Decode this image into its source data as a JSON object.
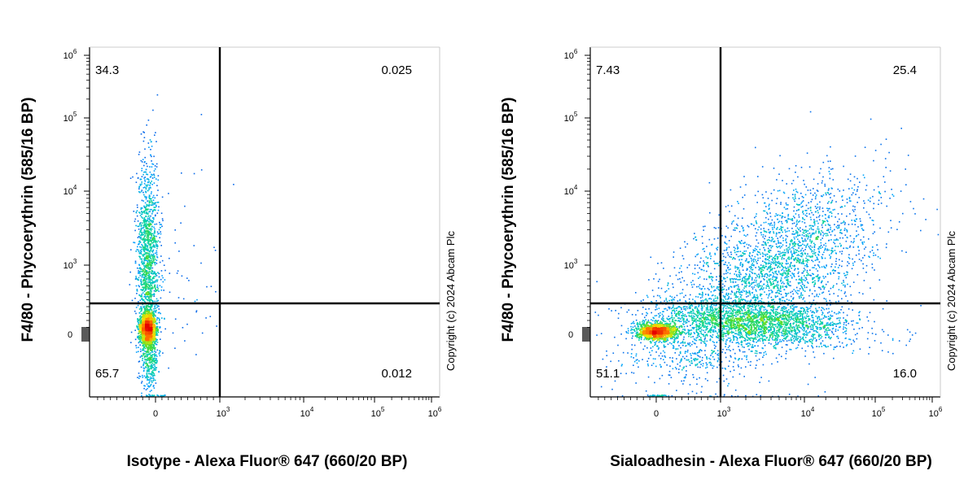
{
  "chart_data": [
    {
      "type": "scatter",
      "subtype": "flow-cytometry-density",
      "xlabel": "Isotype - Alexa Fluor® 647 (660/20 BP)",
      "ylabel": "F4/80 - Phycoerythrin (585/16 BP)",
      "x_scale": "biexponential",
      "y_scale": "biexponential",
      "x_ticks": [
        "0",
        "10^3",
        "10^4",
        "10^5",
        "10^6"
      ],
      "y_ticks": [
        "0",
        "10^3",
        "10^4",
        "10^5",
        "10^6"
      ],
      "copyright": "Copyright (c) 2024 Abcam Plc",
      "quadrants": {
        "upper_left": "34.3",
        "upper_right": "0.025",
        "lower_left": "65.7",
        "lower_right": "0.012"
      },
      "populations": [
        {
          "x_center": 0,
          "y_center": 0,
          "note": "dense core, extends vertically to about 1e4"
        }
      ]
    },
    {
      "type": "scatter",
      "subtype": "flow-cytometry-density",
      "xlabel": "Sialoadhesin - Alexa Fluor® 647 (660/20 BP)",
      "ylabel": "F4/80 - Phycoerythrin (585/16 BP)",
      "x_scale": "biexponential",
      "y_scale": "biexponential",
      "x_ticks": [
        "0",
        "10^3",
        "10^4",
        "10^5",
        "10^6"
      ],
      "y_ticks": [
        "0",
        "10^3",
        "10^4",
        "10^5",
        "10^6"
      ],
      "copyright": "Copyright (c) 2024 Abcam Plc",
      "quadrants": {
        "upper_left": "7.43",
        "upper_right": "25.4",
        "lower_left": "51.1",
        "lower_right": "16.0"
      },
      "populations": [
        {
          "x_center": 0,
          "y_center": 0,
          "note": "dense core at origin"
        },
        {
          "x_center": 3000,
          "y_center": 800,
          "note": "diagonal spread toward 1e4 / 1e4"
        }
      ]
    }
  ]
}
